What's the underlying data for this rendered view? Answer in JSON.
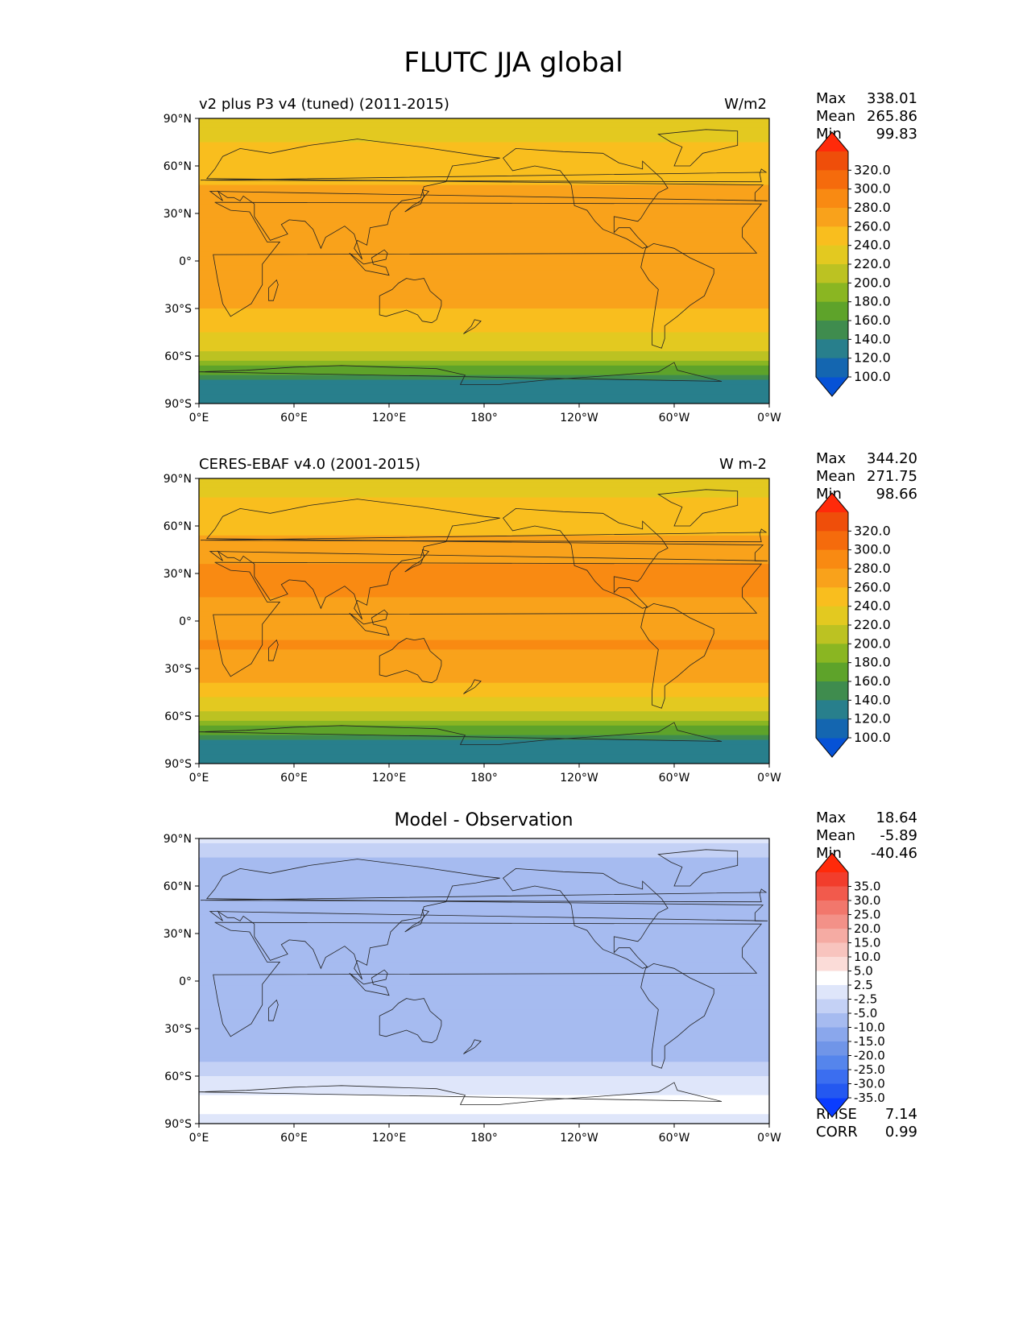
{
  "figure_title": "FLUTC JJA global",
  "panels": [
    {
      "title_left": "v2 plus P3 v4 (tuned) (2011-2015)",
      "title_right": "W/m2",
      "title_center": "",
      "stats": [
        {
          "label": "Max",
          "value": "338.01"
        },
        {
          "label": "Mean",
          "value": "265.86"
        },
        {
          "label": "Min",
          "value": "99.83"
        }
      ],
      "colorbar_labels": [
        "320.0",
        "300.0",
        "280.0",
        "260.0",
        "240.0",
        "220.0",
        "200.0",
        "180.0",
        "160.0",
        "140.0",
        "120.0",
        "100.0"
      ]
    },
    {
      "title_left": "CERES-EBAF v4.0 (2001-2015)",
      "title_right": "W m-2",
      "title_center": "",
      "stats": [
        {
          "label": "Max",
          "value": "344.20"
        },
        {
          "label": "Mean",
          "value": "271.75"
        },
        {
          "label": "Min",
          "value": "98.66"
        }
      ],
      "colorbar_labels": [
        "320.0",
        "300.0",
        "280.0",
        "260.0",
        "240.0",
        "220.0",
        "200.0",
        "180.0",
        "160.0",
        "140.0",
        "120.0",
        "100.0"
      ]
    },
    {
      "title_left": "",
      "title_right": "",
      "title_center": "Model - Observation",
      "stats": [
        {
          "label": "Max",
          "value": "18.64"
        },
        {
          "label": "Mean",
          "value": "-5.89"
        },
        {
          "label": "Min",
          "value": "-40.46"
        }
      ],
      "colorbar_labels": [
        "35.0",
        "30.0",
        "25.0",
        "20.0",
        "15.0",
        "10.0",
        "5.0",
        "2.5",
        "-2.5",
        "-5.0",
        "-10.0",
        "-15.0",
        "-20.0",
        "-25.0",
        "-30.0",
        "-35.0"
      ],
      "metrics": [
        {
          "label": "RMSE",
          "value": "7.14"
        },
        {
          "label": "CORR",
          "value": "0.99"
        }
      ]
    }
  ],
  "axes": {
    "lat_ticks": [
      "90°N",
      "60°N",
      "30°N",
      "0°",
      "30°S",
      "60°S",
      "90°S"
    ],
    "lon_ticks": [
      "0°E",
      "60°E",
      "120°E",
      "180°",
      "120°W",
      "60°W",
      "0°W"
    ]
  },
  "chart_data": [
    {
      "type": "heatmap",
      "title": "v2 plus P3 v4 (tuned) (2011-2015)",
      "units": "W/m2",
      "latitudes": [
        90,
        75,
        60,
        45,
        30,
        15,
        0,
        -15,
        -30,
        -45,
        -60,
        -75,
        -90
      ],
      "zonal_mean_values": [
        225,
        240,
        248,
        262,
        278,
        272,
        262,
        272,
        262,
        240,
        212,
        138,
        125
      ],
      "stats": {
        "max": 338.01,
        "mean": 265.86,
        "min": 99.83
      },
      "contour_levels": [
        100,
        120,
        140,
        160,
        180,
        200,
        220,
        240,
        260,
        280,
        300,
        320
      ],
      "colors": [
        "#0652d6",
        "#1466b0",
        "#287f8c",
        "#3f8c4e",
        "#5ea32a",
        "#8ab622",
        "#bcc222",
        "#e3c920",
        "#f9be1e",
        "#f9a21b",
        "#f98a12",
        "#f56b0c",
        "#ef4e0a",
        "#ff2a0a"
      ],
      "xlim": [
        0,
        360
      ],
      "ylim": [
        -90,
        90
      ]
    },
    {
      "type": "heatmap",
      "title": "CERES-EBAF v4.0 (2001-2015)",
      "units": "W m-2",
      "latitudes": [
        90,
        75,
        60,
        45,
        30,
        15,
        0,
        -15,
        -30,
        -45,
        -60,
        -75,
        -90
      ],
      "zonal_mean_values": [
        222,
        242,
        255,
        270,
        285,
        280,
        275,
        282,
        272,
        248,
        214,
        140,
        120
      ],
      "stats": {
        "max": 344.2,
        "mean": 271.75,
        "min": 98.66
      },
      "contour_levels": [
        100,
        120,
        140,
        160,
        180,
        200,
        220,
        240,
        260,
        280,
        300,
        320
      ],
      "colors": [
        "#0652d6",
        "#1466b0",
        "#287f8c",
        "#3f8c4e",
        "#5ea32a",
        "#8ab622",
        "#bcc222",
        "#e3c920",
        "#f9be1e",
        "#f9a21b",
        "#f98a12",
        "#f56b0c",
        "#ef4e0a",
        "#ff2a0a"
      ],
      "xlim": [
        0,
        360
      ],
      "ylim": [
        -90,
        90
      ]
    },
    {
      "type": "heatmap",
      "title": "Model - Observation",
      "latitudes": [
        90,
        75,
        60,
        45,
        30,
        15,
        0,
        -15,
        -30,
        -45,
        -60,
        -75,
        -90
      ],
      "zonal_mean_values": [
        -2,
        -6,
        -7,
        -8,
        -7,
        -8,
        -9,
        -10,
        -10,
        -8,
        -2,
        3,
        2
      ],
      "stats": {
        "max": 18.64,
        "mean": -5.89,
        "min": -40.46,
        "rmse": 7.14,
        "corr": 0.99
      },
      "contour_levels": [
        -35,
        -30,
        -25,
        -20,
        -15,
        -10,
        -5,
        -2.5,
        2.5,
        5,
        10,
        15,
        20,
        25,
        30,
        35
      ],
      "colors": [
        "#0a3cff",
        "#2458f0",
        "#3b6ef0",
        "#5585ec",
        "#7095e8",
        "#8aa7ec",
        "#a6bbf0",
        "#c4d1f5",
        "#dfe6fa",
        "#ffffff",
        "#fbdcd8",
        "#f8c4be",
        "#f5aba3",
        "#f39188",
        "#f2776c",
        "#f25a4c",
        "#f23d2c",
        "#ff2a0a"
      ],
      "xlim": [
        0,
        360
      ],
      "ylim": [
        -90,
        90
      ]
    }
  ]
}
